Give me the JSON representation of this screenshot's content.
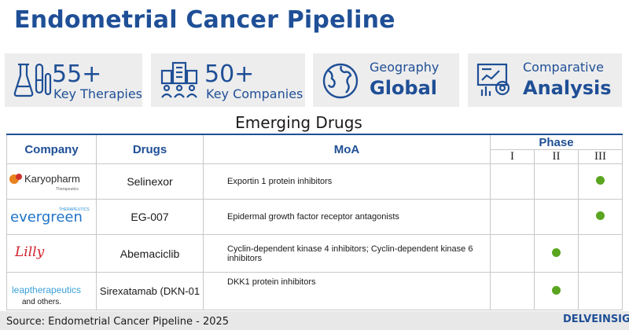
{
  "title": "Endometrial Cancer Pipeline",
  "stats": [
    {
      "icon": "flask-icon",
      "big": "55+",
      "small": "Key Therapies"
    },
    {
      "icon": "companies-icon",
      "big": "50+",
      "small": "Key Companies"
    },
    {
      "icon": "globe-icon",
      "small": "Geography",
      "big": "Global"
    },
    {
      "icon": "analysis-icon",
      "small": "Comparative",
      "big": "Analysis"
    }
  ],
  "section_title": "Emerging Drugs",
  "table": {
    "headers": {
      "company": "Company",
      "drugs": "Drugs",
      "moa": "MoA",
      "phase": "Phase"
    },
    "phases": [
      "I",
      "II",
      "III"
    ],
    "rows": [
      {
        "company": "Karyopharm",
        "company_sub": "Therapeutics",
        "drug": "Selinexor",
        "moa": "Exportin 1 protein inhibitors",
        "phase": "III"
      },
      {
        "company": "evergreen",
        "company_sub": "THERAPEUTICS",
        "drug": "EG-007",
        "moa": "Epidermal growth factor receptor antagonists",
        "phase": "III"
      },
      {
        "company": "Lilly",
        "company_sub": "",
        "drug": "Abemaciclib",
        "moa": "Cyclin-dependent kinase 4 inhibitors; Cyclin-dependent kinase 6 inhibitors",
        "phase": "II"
      },
      {
        "company": "leaptherapeutics",
        "company_sub": "",
        "drug": "Sirexatamab (DKN-01",
        "moa": "DKK1 protein inhibitors",
        "phase": "II"
      }
    ]
  },
  "others": "and others.",
  "source": "Source: Endometrial Cancer Pipeline - 2025",
  "brand": "DELVEINSIGHT",
  "colors": {
    "primary": "#1f4f96",
    "card_bg": "#ededed",
    "dot": "#5aa51f"
  }
}
